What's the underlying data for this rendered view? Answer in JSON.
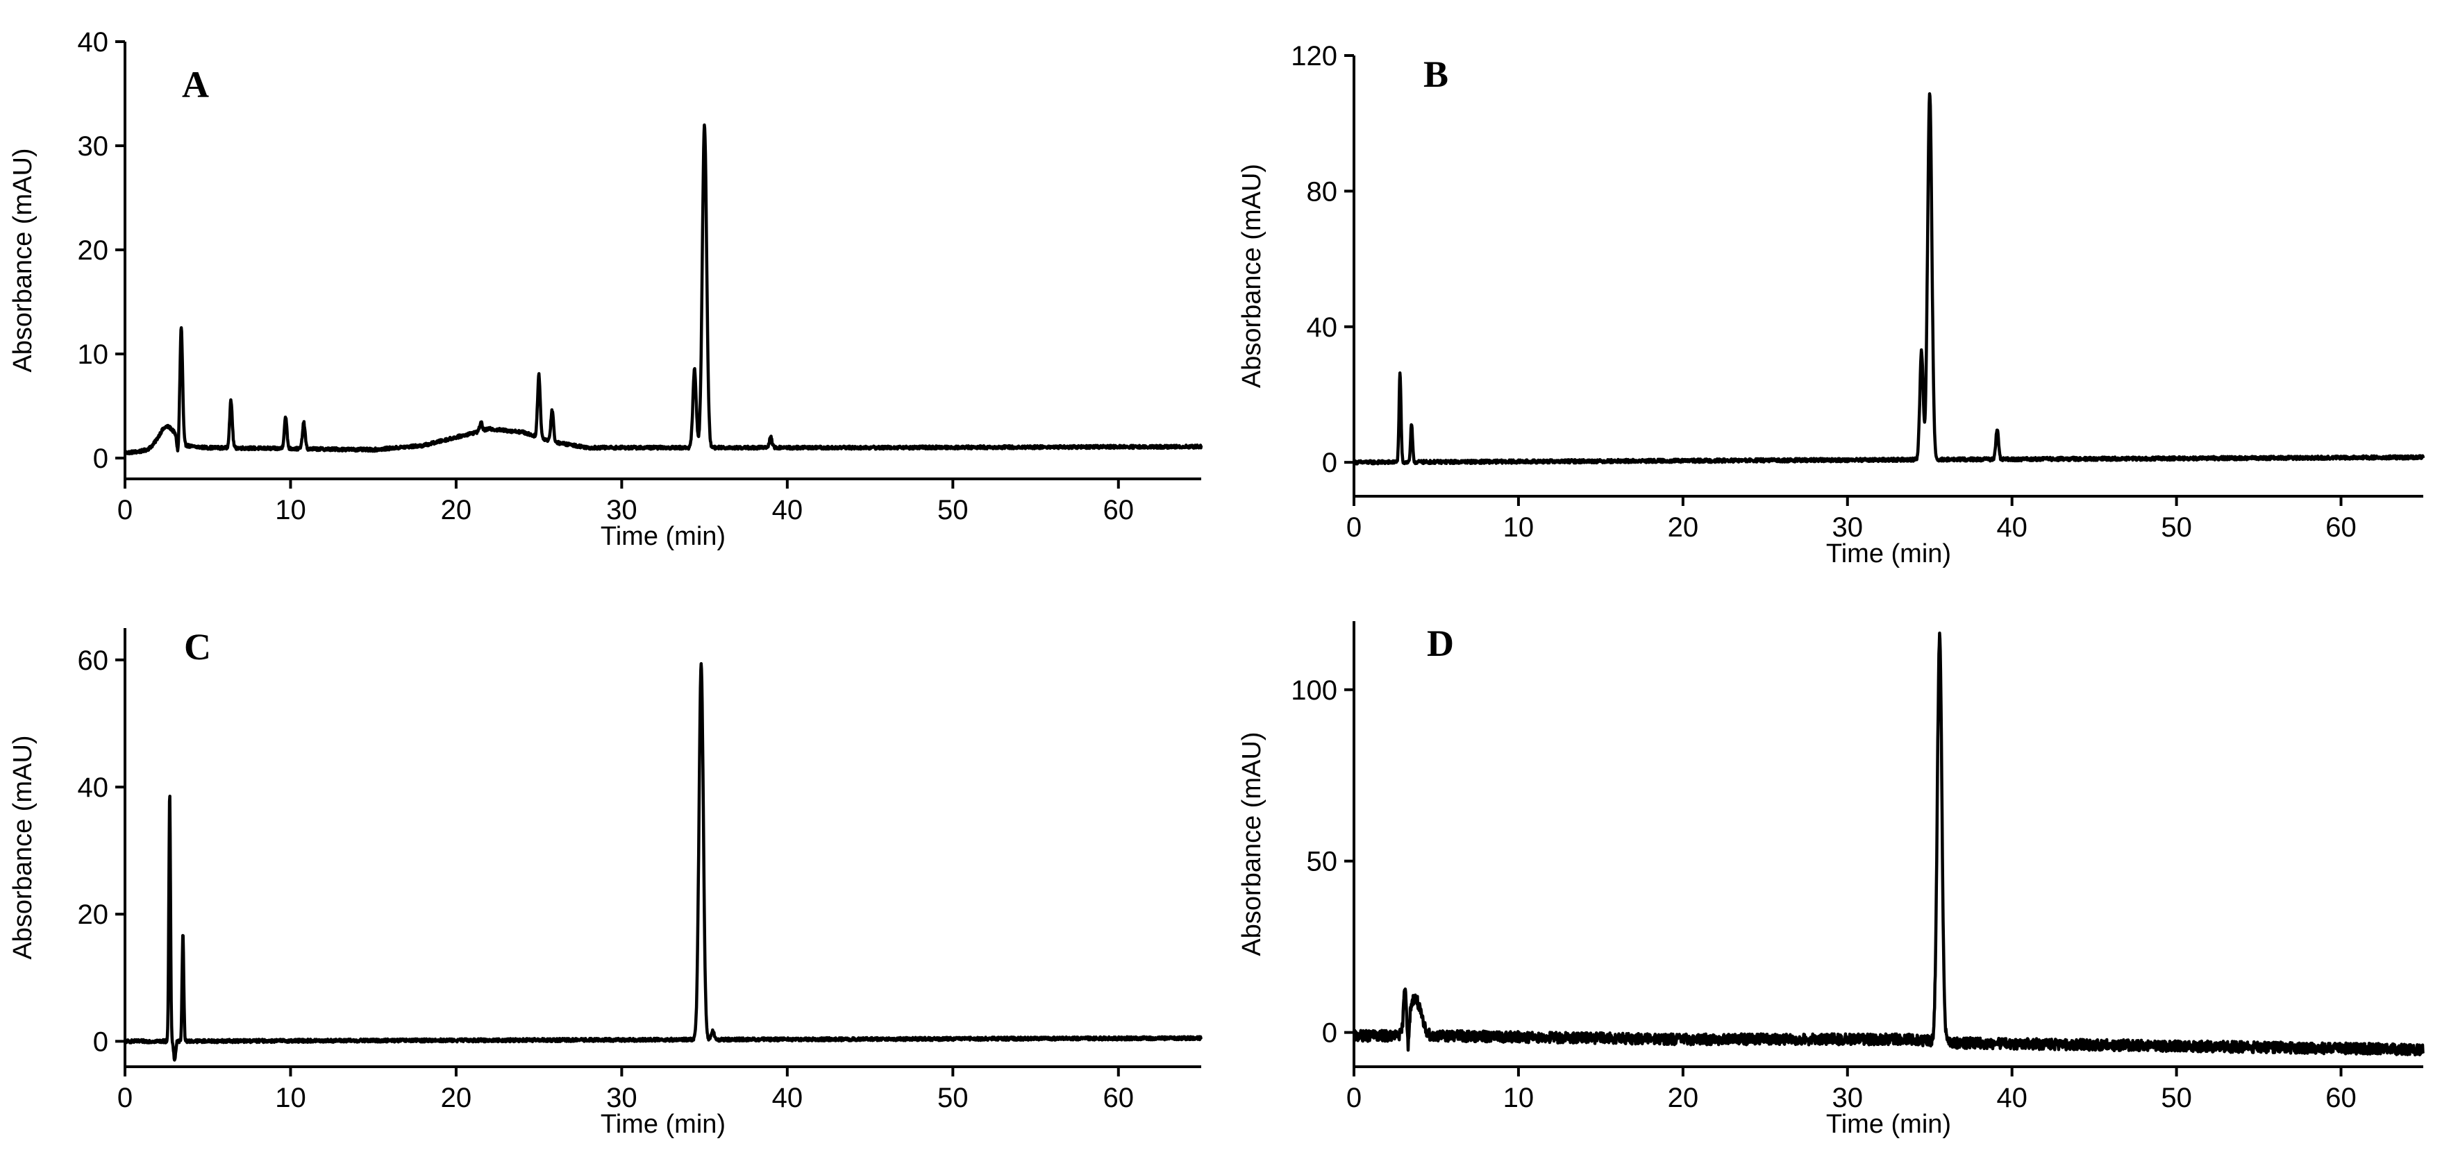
{
  "figure": {
    "xlabel": "Time (min)",
    "ylabel": "Absorbance (mAU)"
  },
  "chart_data": [
    {
      "type": "line",
      "title": "A",
      "xlabel": "Time (min)",
      "ylabel": "Absorbance (mAU)",
      "xlim": [
        0,
        65
      ],
      "ylim": [
        -2,
        40
      ],
      "xticks": [
        0,
        10,
        20,
        30,
        40,
        50,
        60
      ],
      "yticks": [
        0,
        10,
        20,
        30,
        40
      ],
      "baseline": [
        [
          0,
          0.5
        ],
        [
          2,
          0.8
        ],
        [
          3,
          1.2
        ],
        [
          5,
          1.0
        ],
        [
          15,
          0.8
        ],
        [
          18,
          1.2
        ],
        [
          20,
          2.0
        ],
        [
          22,
          2.8
        ],
        [
          24,
          2.5
        ],
        [
          26,
          1.5
        ],
        [
          28,
          1.0
        ],
        [
          33,
          1.0
        ],
        [
          37,
          1.0
        ],
        [
          45,
          1.0
        ],
        [
          65,
          1.1
        ]
      ],
      "peaks": [
        {
          "rt": 2.5,
          "height": 2.0,
          "width": 0.5
        },
        {
          "rt": 3.4,
          "height": 11.0,
          "width": 0.08
        },
        {
          "rt": 6.4,
          "height": 4.5,
          "width": 0.08
        },
        {
          "rt": 9.7,
          "height": 3.0,
          "width": 0.08
        },
        {
          "rt": 10.8,
          "height": 2.5,
          "width": 0.08
        },
        {
          "rt": 21.5,
          "height": 0.8,
          "width": 0.08
        },
        {
          "rt": 25.0,
          "height": 6.0,
          "width": 0.08
        },
        {
          "rt": 25.8,
          "height": 3.0,
          "width": 0.08
        },
        {
          "rt": 34.4,
          "height": 7.5,
          "width": 0.1
        },
        {
          "rt": 35.0,
          "height": 31.0,
          "width": 0.13
        },
        {
          "rt": 39.0,
          "height": 1.0,
          "width": 0.08
        }
      ],
      "dips": [
        {
          "rt": 3.2,
          "depth": 1.5
        }
      ],
      "noise": 0.15
    },
    {
      "type": "line",
      "title": "B",
      "xlabel": "Time (min)",
      "ylabel": "Absorbance (mAU)",
      "xlim": [
        0,
        65
      ],
      "ylim": [
        -10,
        120
      ],
      "xticks": [
        0,
        10,
        20,
        30,
        40,
        50,
        60
      ],
      "yticks": [
        0,
        40,
        80,
        120
      ],
      "baseline": [
        [
          0,
          0
        ],
        [
          65,
          1.5
        ]
      ],
      "peaks": [
        {
          "rt": 2.8,
          "height": 26.0,
          "width": 0.06
        },
        {
          "rt": 3.5,
          "height": 11.0,
          "width": 0.06
        },
        {
          "rt": 34.5,
          "height": 32.0,
          "width": 0.1
        },
        {
          "rt": 35.0,
          "height": 108.0,
          "width": 0.13
        },
        {
          "rt": 39.1,
          "height": 9.0,
          "width": 0.08
        }
      ],
      "dips": [],
      "noise": 0.5
    },
    {
      "type": "line",
      "title": "C",
      "xlabel": "Time (min)",
      "ylabel": "Absorbance (mAU)",
      "xlim": [
        0,
        65
      ],
      "ylim": [
        -4,
        65
      ],
      "xticks": [
        0,
        10,
        20,
        30,
        40,
        50,
        60
      ],
      "yticks": [
        0,
        20,
        40,
        60
      ],
      "baseline": [
        [
          0,
          0
        ],
        [
          65,
          0.5
        ]
      ],
      "peaks": [
        {
          "rt": 2.7,
          "height": 39.0,
          "width": 0.05
        },
        {
          "rt": 3.5,
          "height": 17.0,
          "width": 0.05
        },
        {
          "rt": 34.8,
          "height": 59.0,
          "width": 0.13
        },
        {
          "rt": 35.5,
          "height": 1.5,
          "width": 0.08
        }
      ],
      "dips": [
        {
          "rt": 3.0,
          "depth": 3.0
        }
      ],
      "noise": 0.25
    },
    {
      "type": "line",
      "title": "D",
      "xlabel": "Time (min)",
      "ylabel": "Absorbance (mAU)",
      "xlim": [
        0,
        65
      ],
      "ylim": [
        -10,
        120
      ],
      "xticks": [
        0,
        10,
        20,
        30,
        40,
        50,
        60
      ],
      "yticks": [
        0,
        50,
        100
      ],
      "baseline": [
        [
          0,
          -1
        ],
        [
          5,
          -1
        ],
        [
          20,
          -2
        ],
        [
          34,
          -2
        ],
        [
          36,
          -3
        ],
        [
          65,
          -5
        ]
      ],
      "peaks": [
        {
          "rt": 3.1,
          "height": 12.0,
          "width": 0.08
        },
        {
          "rt": 3.7,
          "height": 11.0,
          "width": 0.35
        },
        {
          "rt": 35.6,
          "height": 118.0,
          "width": 0.14
        }
      ],
      "dips": [
        {
          "rt": 3.3,
          "depth": 9.0
        }
      ],
      "noise": 1.6
    }
  ]
}
